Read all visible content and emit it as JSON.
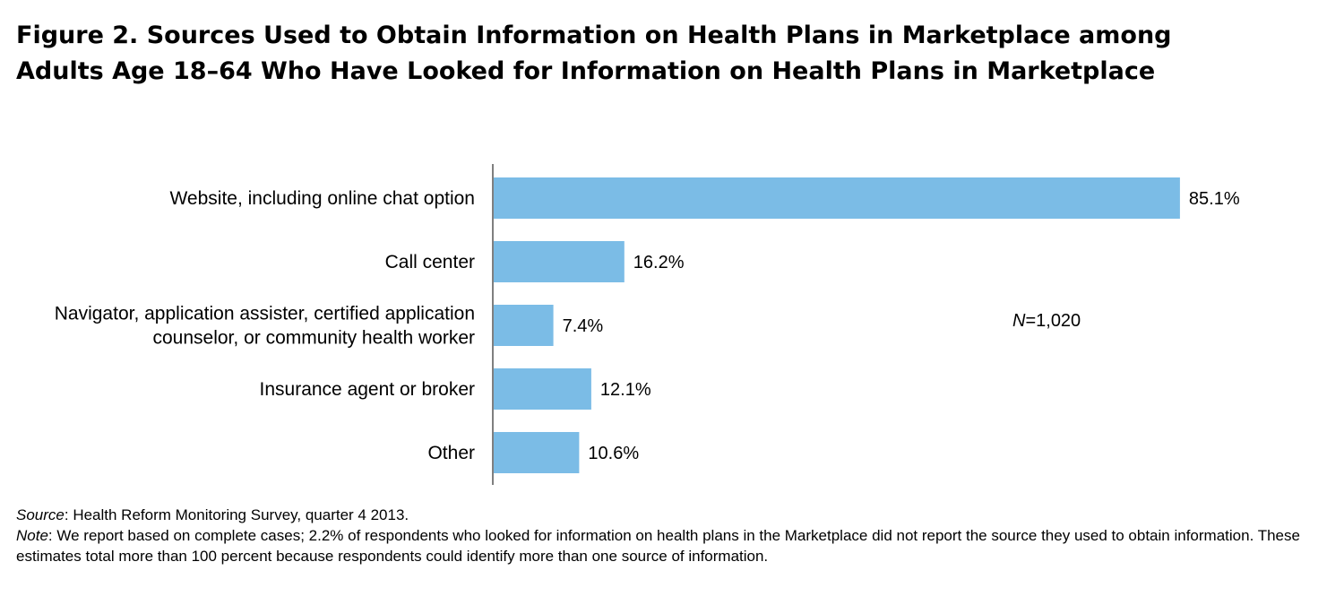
{
  "figure": {
    "title_line1": "Figure 2. Sources Used to Obtain Information on Health Plans in Marketplace among",
    "title_line2": "Adults Age 18–64 Who Have Looked for Information on Health Plans in Marketplace",
    "n_label_italic": "N",
    "n_label_value": "=1,020",
    "source_label": "Source",
    "source_text": ": Health Reform Monitoring Survey, quarter 4 2013.",
    "note_label": "Note",
    "note_text": ": We report based on complete cases; 2.2% of respondents who looked for information on health plans in the Marketplace did not report the source they used to obtain information. These estimates total more than 100 percent because respondents could identify more than one source of information."
  },
  "chart_data": {
    "type": "bar",
    "orientation": "horizontal",
    "categories": [
      [
        "Website, including online chat option"
      ],
      [
        "Call center"
      ],
      [
        "Navigator, application assister, certified application",
        "counselor, or community health worker"
      ],
      [
        "Insurance agent or broker"
      ],
      [
        "Other"
      ]
    ],
    "values": [
      85.1,
      16.2,
      7.4,
      12.1,
      10.6
    ],
    "value_labels": [
      "85.1%",
      "16.2%",
      "7.4%",
      "12.1%",
      "10.6%"
    ],
    "xlim": [
      0,
      100
    ],
    "bar_color": "#7bbce6",
    "axis_color": "#555555",
    "grid": false,
    "legend": false
  }
}
